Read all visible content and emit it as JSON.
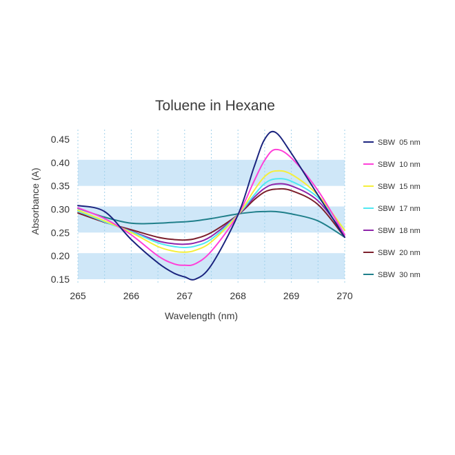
{
  "chart_data": {
    "type": "line",
    "title": "Toluene in Hexane",
    "xlabel": "Wavelength (nm)",
    "ylabel": "Absorbance (A)",
    "xlim": [
      265,
      270
    ],
    "ylim": [
      0.15,
      0.45
    ],
    "x_ticks": [
      "265",
      "266",
      "267",
      "268",
      "269",
      "270"
    ],
    "y_ticks": [
      "0.45",
      "0.40",
      "0.35",
      "0.30",
      "0.25",
      "0.20",
      "0.15"
    ],
    "grid": "vertical dotted gridlines at each x tick; shaded horizontal bands",
    "legend_position": "right",
    "x": [
      265.0,
      265.5,
      266.0,
      266.5,
      266.8,
      267.0,
      267.2,
      267.5,
      268.0,
      268.3,
      268.5,
      268.7,
      269.0,
      269.5,
      270.0
    ],
    "series": [
      {
        "name": "SBW  05 nm",
        "color": "#1a237e",
        "values": [
          0.308,
          0.295,
          0.235,
          0.185,
          0.163,
          0.155,
          0.15,
          0.18,
          0.288,
          0.39,
          0.45,
          0.465,
          0.42,
          0.33,
          0.24
        ]
      },
      {
        "name": "SBW  10 nm",
        "color": "#ff3fd8",
        "values": [
          0.303,
          0.28,
          0.245,
          0.2,
          0.183,
          0.18,
          0.183,
          0.21,
          0.288,
          0.36,
          0.405,
          0.428,
          0.41,
          0.34,
          0.245
        ]
      },
      {
        "name": "SBW  15 nm",
        "color": "#f5ef3a",
        "values": [
          0.298,
          0.275,
          0.25,
          0.22,
          0.21,
          0.208,
          0.212,
          0.23,
          0.288,
          0.34,
          0.37,
          0.382,
          0.375,
          0.33,
          0.255
        ]
      },
      {
        "name": "SBW  17 nm",
        "color": "#4fe8f2",
        "values": [
          0.296,
          0.273,
          0.252,
          0.228,
          0.22,
          0.218,
          0.221,
          0.236,
          0.288,
          0.33,
          0.355,
          0.365,
          0.36,
          0.325,
          0.255
        ]
      },
      {
        "name": "SBW  18 nm",
        "color": "#8e24aa",
        "values": [
          0.296,
          0.273,
          0.253,
          0.232,
          0.226,
          0.225,
          0.228,
          0.242,
          0.288,
          0.325,
          0.345,
          0.354,
          0.35,
          0.318,
          0.245
        ]
      },
      {
        "name": "SBW  20 nm",
        "color": "#7b1f2b",
        "values": [
          0.292,
          0.272,
          0.256,
          0.24,
          0.235,
          0.234,
          0.237,
          0.25,
          0.288,
          0.32,
          0.337,
          0.343,
          0.34,
          0.31,
          0.24
        ]
      },
      {
        "name": "SBW  30 nm",
        "color": "#1f7f8a",
        "values": [
          0.302,
          0.283,
          0.27,
          0.27,
          0.272,
          0.273,
          0.275,
          0.28,
          0.29,
          0.294,
          0.295,
          0.295,
          0.29,
          0.275,
          0.24
        ]
      }
    ]
  }
}
